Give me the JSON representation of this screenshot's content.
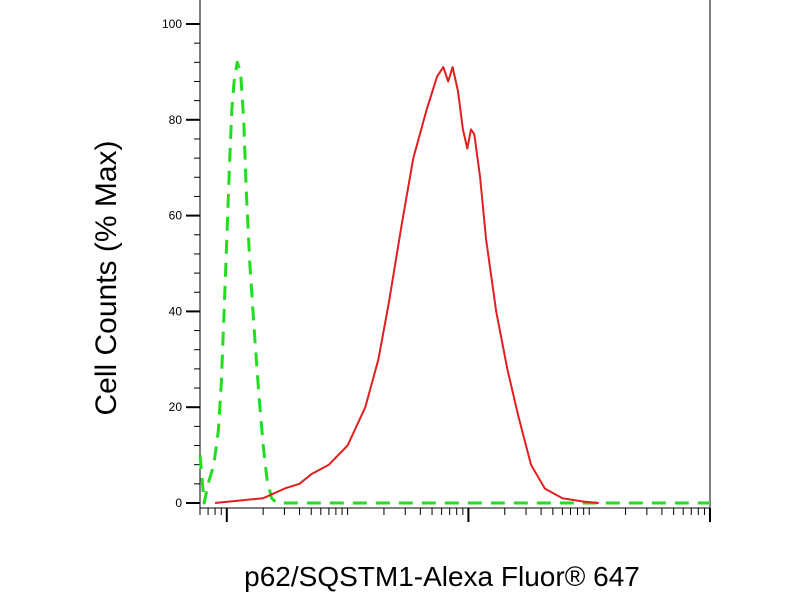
{
  "chart_data": {
    "type": "line",
    "title": "",
    "xlabel": "p62/SQSTM1-Alexa Fluor® 647",
    "ylabel": "Cell Counts (% Max)",
    "ylim": [
      0,
      100
    ],
    "yticks": [
      0,
      20,
      40,
      60,
      80,
      100
    ],
    "xscale": "log",
    "xlim": [
      0.6,
      10000
    ],
    "x_major_ticks": [
      1,
      100,
      10000
    ],
    "grid": false,
    "legend": "none",
    "series": [
      {
        "style": "dashed",
        "color": "#22dd22",
        "points": [
          [
            0.6,
            10
          ],
          [
            0.65,
            0
          ],
          [
            0.7,
            4
          ],
          [
            0.78,
            8
          ],
          [
            0.85,
            15
          ],
          [
            0.9,
            25
          ],
          [
            0.95,
            40
          ],
          [
            1.0,
            55
          ],
          [
            1.05,
            70
          ],
          [
            1.1,
            82
          ],
          [
            1.15,
            88
          ],
          [
            1.22,
            92
          ],
          [
            1.3,
            90
          ],
          [
            1.38,
            80
          ],
          [
            1.45,
            65
          ],
          [
            1.55,
            50
          ],
          [
            1.7,
            35
          ],
          [
            1.85,
            22
          ],
          [
            2.0,
            12
          ],
          [
            2.15,
            5
          ],
          [
            2.35,
            1
          ],
          [
            2.6,
            0
          ],
          [
            10000,
            0
          ]
        ]
      },
      {
        "style": "solid",
        "color": "#e02020",
        "points": [
          [
            0.8,
            0
          ],
          [
            2.0,
            1
          ],
          [
            3.0,
            3
          ],
          [
            4.0,
            4
          ],
          [
            5.0,
            6
          ],
          [
            7.0,
            8
          ],
          [
            10,
            12
          ],
          [
            14,
            20
          ],
          [
            18,
            30
          ],
          [
            22,
            42
          ],
          [
            28,
            58
          ],
          [
            35,
            72
          ],
          [
            45,
            82
          ],
          [
            55,
            89
          ],
          [
            62,
            91
          ],
          [
            68,
            88
          ],
          [
            74,
            91
          ],
          [
            82,
            86
          ],
          [
            90,
            78
          ],
          [
            98,
            74
          ],
          [
            105,
            78
          ],
          [
            112,
            77
          ],
          [
            125,
            68
          ],
          [
            140,
            55
          ],
          [
            170,
            40
          ],
          [
            210,
            28
          ],
          [
            260,
            18
          ],
          [
            330,
            8
          ],
          [
            430,
            3
          ],
          [
            600,
            1
          ],
          [
            900,
            0.3
          ],
          [
            1200,
            0
          ]
        ]
      }
    ]
  }
}
